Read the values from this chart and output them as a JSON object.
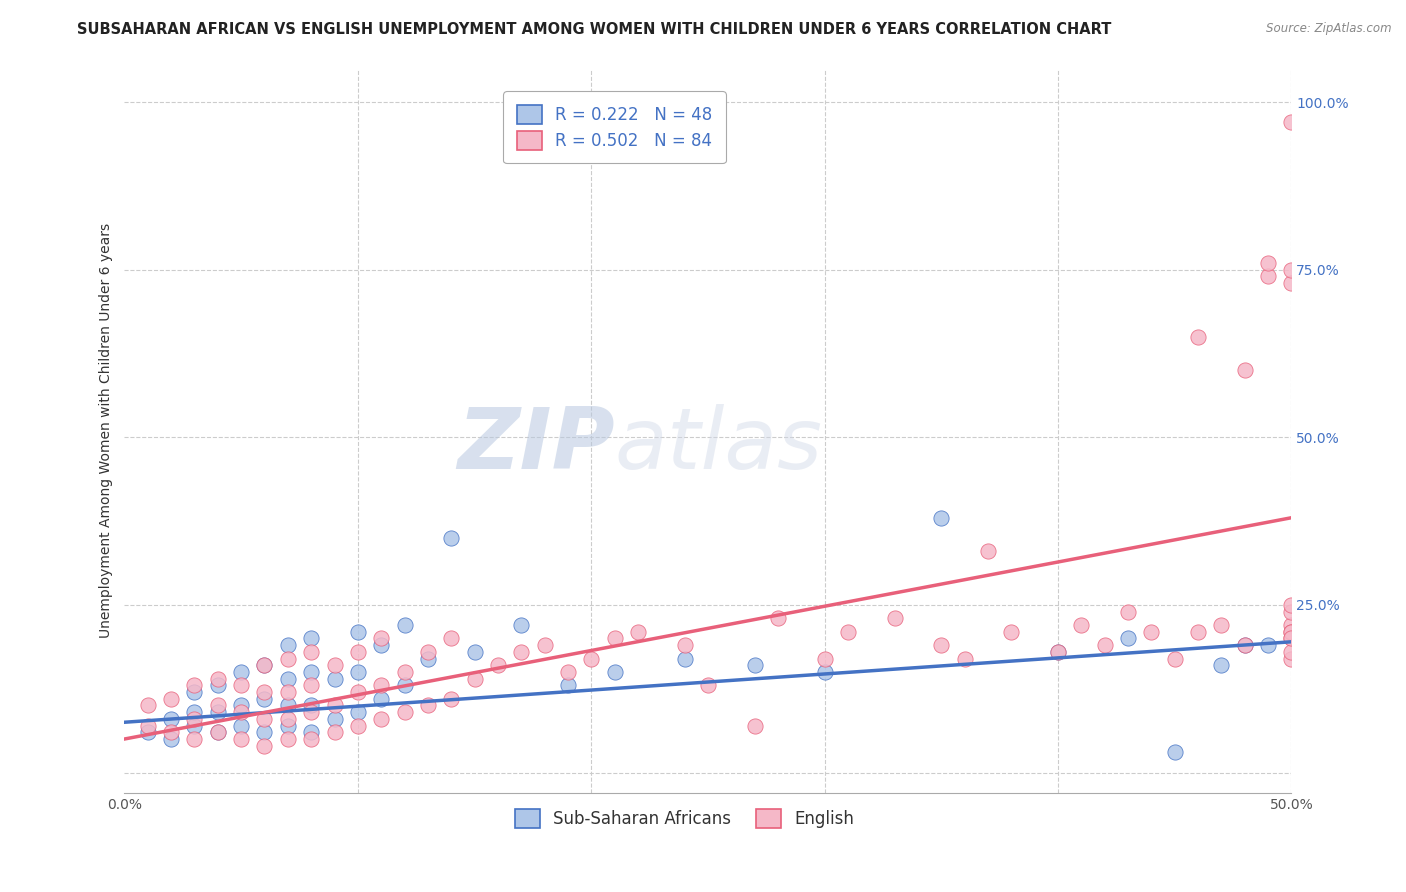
{
  "title": "SUBSAHARAN AFRICAN VS ENGLISH UNEMPLOYMENT AMONG WOMEN WITH CHILDREN UNDER 6 YEARS CORRELATION CHART",
  "source": "Source: ZipAtlas.com",
  "ylabel": "Unemployment Among Women with Children Under 6 years",
  "watermark_zip": "ZIP",
  "watermark_atlas": "atlas",
  "legend1_label": "R = 0.222   N = 48",
  "legend2_label": "R = 0.502   N = 84",
  "series1_color": "#aec6e8",
  "series2_color": "#f5b8c8",
  "trendline1_color": "#4472c4",
  "trendline2_color": "#e8607a",
  "xlim": [
    0.0,
    0.5
  ],
  "ylim": [
    -0.03,
    1.05
  ],
  "xticks": [
    0.0,
    0.1,
    0.2,
    0.3,
    0.4,
    0.5
  ],
  "xticklabels": [
    "0.0%",
    "",
    "",
    "",
    "",
    "50.0%"
  ],
  "yticks": [
    0.0,
    0.25,
    0.5,
    0.75,
    1.0
  ],
  "yticklabels": [
    "",
    "25.0%",
    "50.0%",
    "75.0%",
    "100.0%"
  ],
  "blue_scatter_x": [
    0.01,
    0.02,
    0.02,
    0.03,
    0.03,
    0.03,
    0.04,
    0.04,
    0.04,
    0.05,
    0.05,
    0.05,
    0.06,
    0.06,
    0.06,
    0.07,
    0.07,
    0.07,
    0.07,
    0.08,
    0.08,
    0.08,
    0.08,
    0.09,
    0.09,
    0.1,
    0.1,
    0.1,
    0.11,
    0.11,
    0.12,
    0.12,
    0.13,
    0.14,
    0.15,
    0.17,
    0.19,
    0.21,
    0.24,
    0.27,
    0.3,
    0.35,
    0.4,
    0.43,
    0.45,
    0.47,
    0.48,
    0.49
  ],
  "blue_scatter_y": [
    0.06,
    0.05,
    0.08,
    0.07,
    0.09,
    0.12,
    0.06,
    0.09,
    0.13,
    0.07,
    0.1,
    0.15,
    0.06,
    0.11,
    0.16,
    0.07,
    0.1,
    0.14,
    0.19,
    0.06,
    0.1,
    0.15,
    0.2,
    0.08,
    0.14,
    0.09,
    0.15,
    0.21,
    0.11,
    0.19,
    0.13,
    0.22,
    0.17,
    0.35,
    0.18,
    0.22,
    0.13,
    0.15,
    0.17,
    0.16,
    0.15,
    0.38,
    0.18,
    0.2,
    0.03,
    0.16,
    0.19,
    0.19
  ],
  "pink_scatter_x": [
    0.01,
    0.01,
    0.02,
    0.02,
    0.03,
    0.03,
    0.03,
    0.04,
    0.04,
    0.04,
    0.05,
    0.05,
    0.05,
    0.06,
    0.06,
    0.06,
    0.06,
    0.07,
    0.07,
    0.07,
    0.07,
    0.08,
    0.08,
    0.08,
    0.08,
    0.09,
    0.09,
    0.09,
    0.1,
    0.1,
    0.1,
    0.11,
    0.11,
    0.11,
    0.12,
    0.12,
    0.13,
    0.13,
    0.14,
    0.14,
    0.15,
    0.16,
    0.17,
    0.18,
    0.19,
    0.2,
    0.21,
    0.22,
    0.24,
    0.25,
    0.27,
    0.28,
    0.3,
    0.31,
    0.33,
    0.35,
    0.36,
    0.37,
    0.38,
    0.4,
    0.41,
    0.42,
    0.43,
    0.44,
    0.45,
    0.46,
    0.46,
    0.47,
    0.48,
    0.48,
    0.49,
    0.49,
    0.5,
    0.5,
    0.5,
    0.5,
    0.5,
    0.5,
    0.5,
    0.5,
    0.5,
    0.5,
    0.5,
    0.5
  ],
  "pink_scatter_y": [
    0.07,
    0.1,
    0.06,
    0.11,
    0.05,
    0.08,
    0.13,
    0.06,
    0.1,
    0.14,
    0.05,
    0.09,
    0.13,
    0.04,
    0.08,
    0.12,
    0.16,
    0.05,
    0.08,
    0.12,
    0.17,
    0.05,
    0.09,
    0.13,
    0.18,
    0.06,
    0.1,
    0.16,
    0.07,
    0.12,
    0.18,
    0.08,
    0.13,
    0.2,
    0.09,
    0.15,
    0.1,
    0.18,
    0.11,
    0.2,
    0.14,
    0.16,
    0.18,
    0.19,
    0.15,
    0.17,
    0.2,
    0.21,
    0.19,
    0.13,
    0.07,
    0.23,
    0.17,
    0.21,
    0.23,
    0.19,
    0.17,
    0.33,
    0.21,
    0.18,
    0.22,
    0.19,
    0.24,
    0.21,
    0.17,
    0.21,
    0.65,
    0.22,
    0.6,
    0.19,
    0.74,
    0.76,
    0.22,
    0.97,
    0.73,
    0.75,
    0.17,
    0.21,
    0.24,
    0.2,
    0.18,
    0.21,
    0.25,
    0.2
  ],
  "trendline1_x": [
    0.0,
    0.5
  ],
  "trendline1_y": [
    0.075,
    0.195
  ],
  "trendline2_x": [
    0.0,
    0.5
  ],
  "trendline2_y": [
    0.05,
    0.38
  ],
  "background_color": "#ffffff",
  "grid_color": "#cccccc",
  "title_fontsize": 10.5,
  "axis_fontsize": 10,
  "legend_fontsize": 12
}
